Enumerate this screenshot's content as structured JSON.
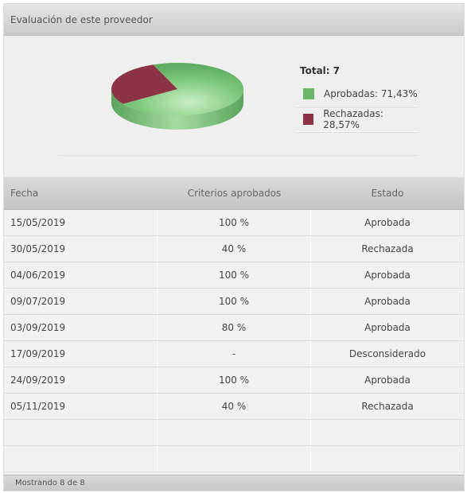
{
  "panel": {
    "title": "Evaluación de este proveedor"
  },
  "chart_data": {
    "type": "pie",
    "total_label": "Total:",
    "total_value": "7",
    "slices": [
      {
        "name": "Aprobadas: 71,43%",
        "value": 71.43,
        "color": "#69b86a"
      },
      {
        "name": "Rechazadas: 28,57%",
        "value": 28.57,
        "color": "#8c3446"
      }
    ]
  },
  "table": {
    "headers": [
      "Fecha",
      "Criterios aprobados",
      "Estado"
    ],
    "rows": [
      [
        "15/05/2019",
        "100 %",
        "Aprobada"
      ],
      [
        "30/05/2019",
        "40 %",
        "Rechazada"
      ],
      [
        "04/06/2019",
        "100 %",
        "Aprobada"
      ],
      [
        "09/07/2019",
        "100 %",
        "Aprobada"
      ],
      [
        "03/09/2019",
        "80 %",
        "Aprobada"
      ],
      [
        "17/09/2019",
        "-",
        "Desconsiderado"
      ],
      [
        "24/09/2019",
        "100 %",
        "Aprobada"
      ],
      [
        "05/11/2019",
        "40 %",
        "Rechazada"
      ],
      [
        "",
        "",
        ""
      ],
      [
        "",
        "",
        ""
      ]
    ]
  },
  "footer": {
    "status": "Mostrando 8 de 8"
  }
}
